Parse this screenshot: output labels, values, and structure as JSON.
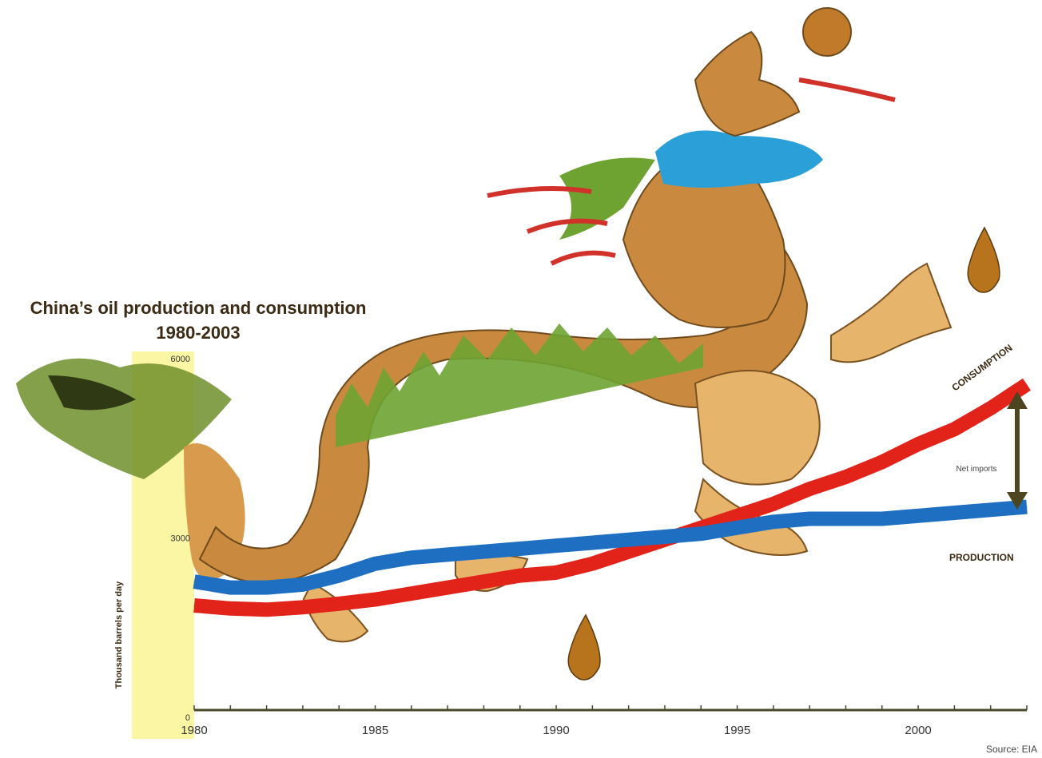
{
  "chart_data": {
    "type": "line",
    "title": "China’s oil production and consumption",
    "subtitle": "1980-2003",
    "ylabel": "Thousand barrels per day",
    "xlabel": "",
    "xlim": [
      1980,
      2003
    ],
    "ylim": [
      0,
      6000
    ],
    "x_ticks": [
      "1980",
      "1985",
      "1990",
      "1995",
      "2000"
    ],
    "y_ticks": [
      "0",
      "3000",
      "6000"
    ],
    "grid": false,
    "series": [
      {
        "name": "CONSUMPTION",
        "color": "#e2231a",
        "x": [
          1980,
          1981,
          1982,
          1983,
          1984,
          1985,
          1986,
          1987,
          1988,
          1989,
          1990,
          1991,
          1992,
          1993,
          1994,
          1995,
          1996,
          1997,
          1998,
          1999,
          2000,
          2001,
          2002,
          2003
        ],
        "values": [
          1750,
          1700,
          1680,
          1720,
          1780,
          1850,
          1950,
          2050,
          2150,
          2250,
          2300,
          2450,
          2650,
          2850,
          3050,
          3250,
          3450,
          3700,
          3900,
          4150,
          4450,
          4700,
          5050,
          5450
        ]
      },
      {
        "name": "PRODUCTION",
        "color": "#1e6fc2",
        "x": [
          1980,
          1981,
          1982,
          1983,
          1984,
          1985,
          1986,
          1987,
          1988,
          1989,
          1990,
          1991,
          1992,
          1993,
          1994,
          1995,
          1996,
          1997,
          1998,
          1999,
          2000,
          2001,
          2002,
          2003
        ],
        "values": [
          2150,
          2050,
          2050,
          2100,
          2250,
          2450,
          2550,
          2600,
          2650,
          2700,
          2750,
          2800,
          2850,
          2900,
          2950,
          3050,
          3150,
          3200,
          3200,
          3200,
          3250,
          3300,
          3350,
          3400
        ]
      }
    ],
    "annotations": [
      {
        "text": "Net imports"
      }
    ]
  },
  "source": "Source: EIA",
  "colors": {
    "highlight": "#fbf6a4",
    "axis": "#4a4a2a",
    "arrow": "#4d4420"
  }
}
